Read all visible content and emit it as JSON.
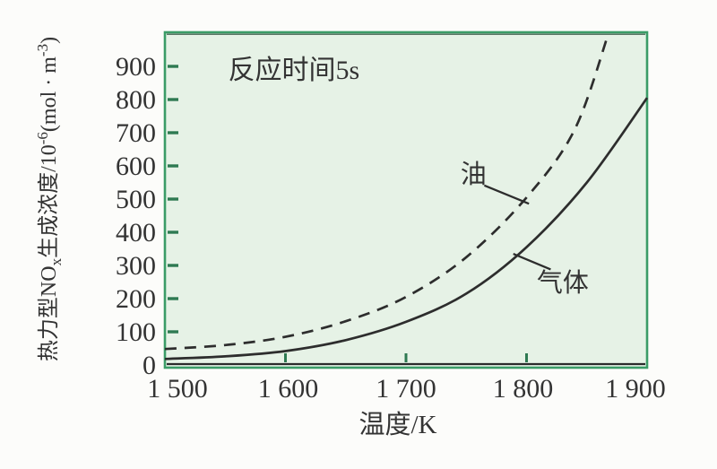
{
  "figure": {
    "canvas_bg": "#fcfcfa"
  },
  "chart_data": {
    "type": "line",
    "annotation": "反应时间5s",
    "xlabel": "温度/K",
    "ylabel_parts": [
      {
        "text": "热力型NO",
        "script": "normal"
      },
      {
        "text": "x",
        "script": "sub"
      },
      {
        "text": "生成浓度/10",
        "script": "normal"
      },
      {
        "text": "-6",
        "script": "sup"
      },
      {
        "text": "(mol · m",
        "script": "normal"
      },
      {
        "text": "-3",
        "script": "sup"
      },
      {
        "text": ")",
        "script": "normal"
      }
    ],
    "xlim": [
      1500,
      1900
    ],
    "ylim": [
      0,
      1000
    ],
    "grid": false,
    "legend_position": "none",
    "x_ticks": [
      {
        "value": 1500,
        "label": "1 500"
      },
      {
        "value": 1600,
        "label": "1 600"
      },
      {
        "value": 1700,
        "label": "1 700"
      },
      {
        "value": 1800,
        "label": "1 800"
      },
      {
        "value": 1900,
        "label": "1 900"
      }
    ],
    "y_ticks": [
      {
        "value": 0,
        "label": "0"
      },
      {
        "value": 100,
        "label": "100"
      },
      {
        "value": 200,
        "label": "200"
      },
      {
        "value": 300,
        "label": "300"
      },
      {
        "value": 400,
        "label": "400"
      },
      {
        "value": 500,
        "label": "500"
      },
      {
        "value": 600,
        "label": "600"
      },
      {
        "value": 700,
        "label": "700"
      },
      {
        "value": 800,
        "label": "800"
      },
      {
        "value": 900,
        "label": "900"
      }
    ],
    "series": [
      {
        "name": "油",
        "style": "dashed",
        "points": [
          [
            1500,
            48
          ],
          [
            1550,
            60
          ],
          [
            1600,
            85
          ],
          [
            1650,
            132
          ],
          [
            1700,
            205
          ],
          [
            1750,
            325
          ],
          [
            1800,
            505
          ],
          [
            1840,
            710
          ],
          [
            1868,
            1000
          ]
        ]
      },
      {
        "name": "气体",
        "style": "solid",
        "points": [
          [
            1500,
            18
          ],
          [
            1550,
            26
          ],
          [
            1600,
            42
          ],
          [
            1650,
            75
          ],
          [
            1700,
            130
          ],
          [
            1750,
            215
          ],
          [
            1800,
            355
          ],
          [
            1850,
            550
          ],
          [
            1900,
            805
          ]
        ]
      }
    ],
    "series_labels": [
      {
        "text": "油",
        "x": 1756,
        "y": 576,
        "leader": [
          [
            1765,
            541
          ],
          [
            1802,
            486
          ]
        ]
      },
      {
        "text": "气体",
        "x": 1830,
        "y": 248,
        "leader": [
          [
            1789,
            335
          ],
          [
            1820,
            288
          ]
        ]
      }
    ],
    "annotation_pos": {
      "x": 1607,
      "y": 889
    },
    "colors": {
      "plot_bg": "#e6f2e6",
      "plot_border": "#3b9c67",
      "top_inner_line": "#2a4a3a",
      "axis_line": "#2b2b2b",
      "tick": "#2e7a52",
      "curve": "#2d2d2d",
      "text": "#333333"
    }
  }
}
